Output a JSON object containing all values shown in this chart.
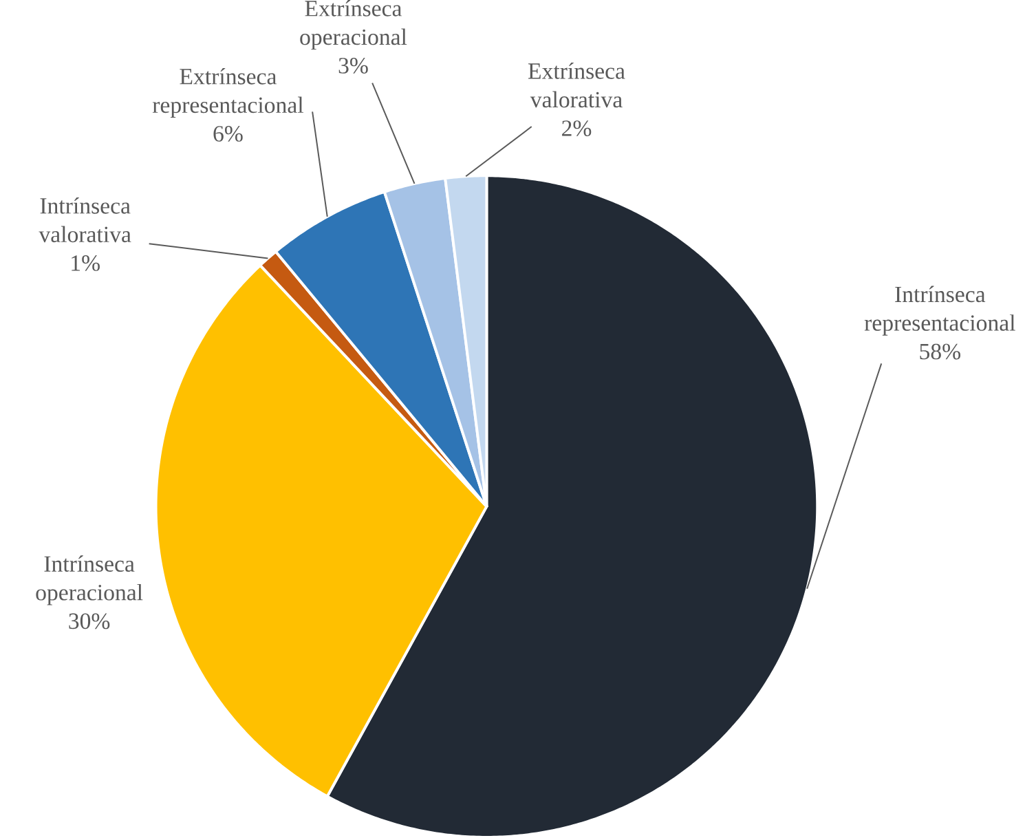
{
  "chart_data": {
    "type": "pie",
    "categories": [
      "Intrínseca representacional",
      "Intrínseca operacional",
      "Intrínseca valorativa",
      "Extrínseca representacional",
      "Extrínseca operacional",
      "Extrínseca valorativa"
    ],
    "values": [
      58,
      30,
      1,
      6,
      3,
      2
    ],
    "value_labels": [
      "58%",
      "30%",
      "1%",
      "6%",
      "3%",
      "2%"
    ],
    "colors": [
      "#222a35",
      "#ffc000",
      "#c55a11",
      "#2e75b6",
      "#a5c2e6",
      "#c3d8ef"
    ]
  }
}
